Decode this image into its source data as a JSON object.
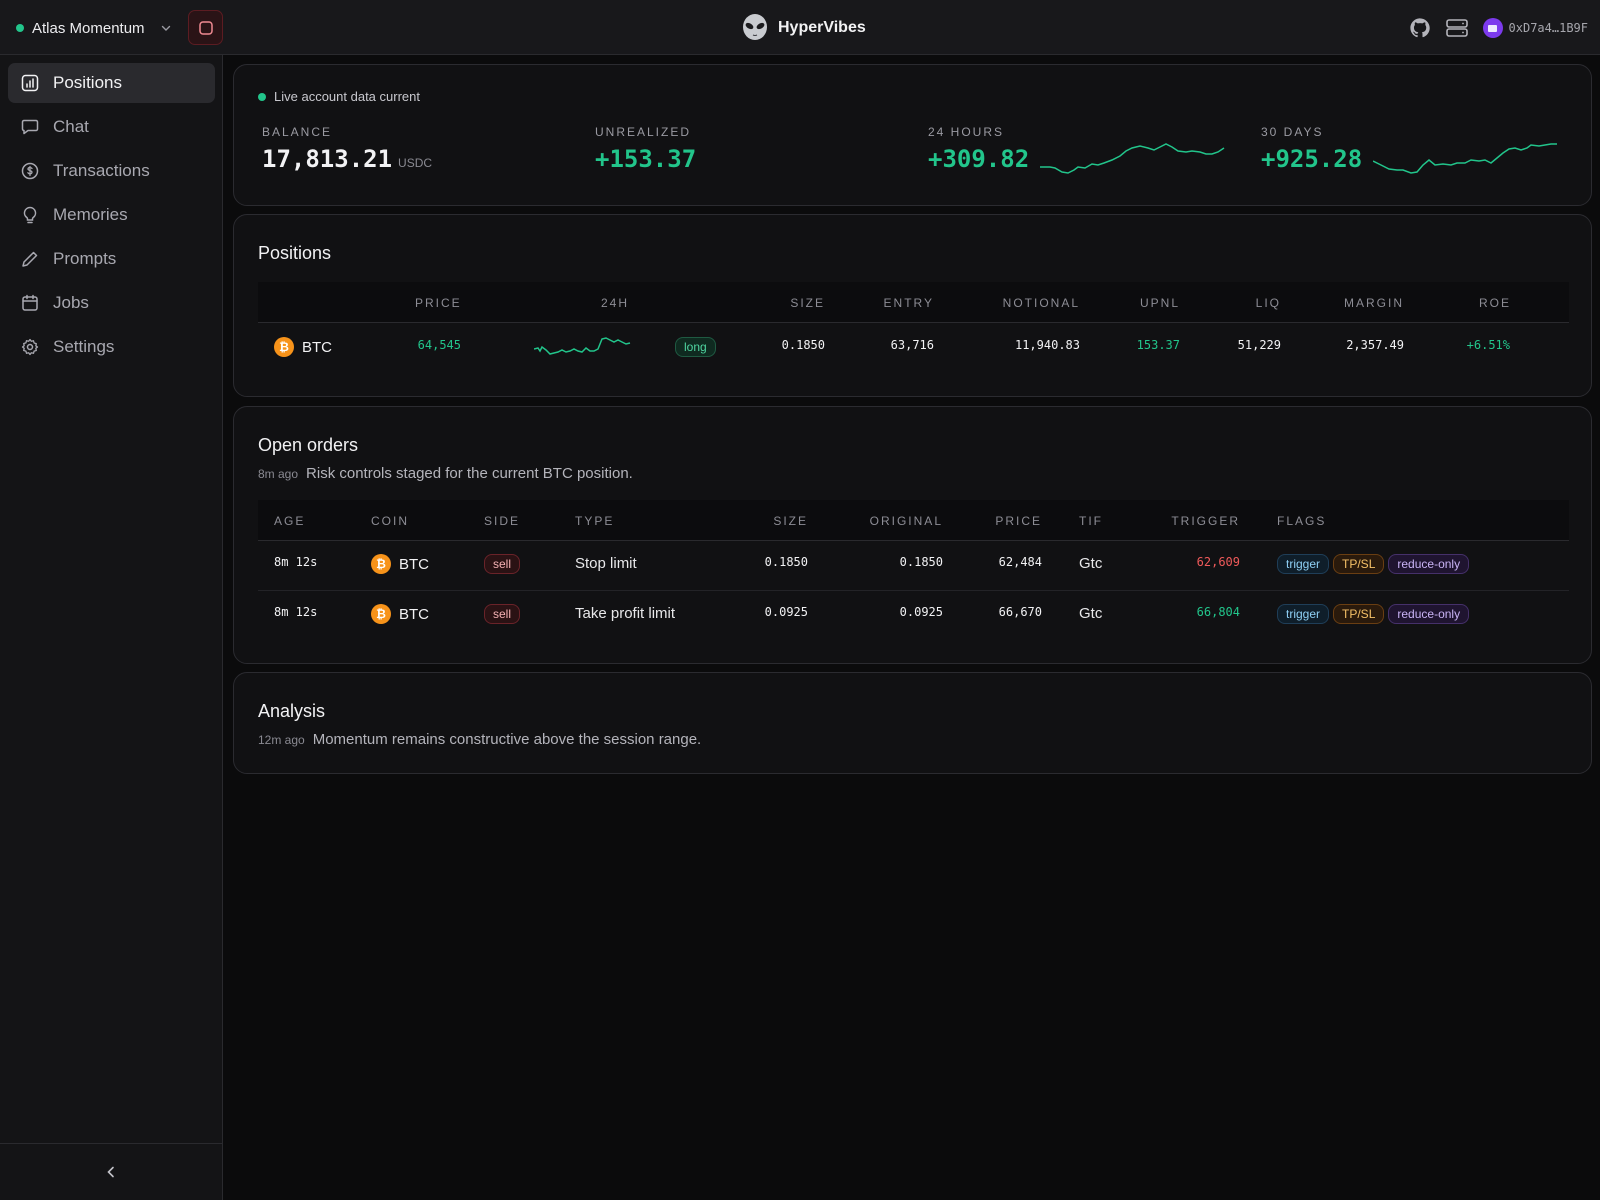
{
  "topbar": {
    "account_name": "Atlas Momentum",
    "brand": "HyperVibes",
    "wallet_address": "0xD7a4…1B9F"
  },
  "sidebar": {
    "items": [
      {
        "label": "Positions",
        "icon": "chart-bar-icon",
        "active": true
      },
      {
        "label": "Chat",
        "icon": "chat-bubble-icon"
      },
      {
        "label": "Transactions",
        "icon": "dollar-circle-icon"
      },
      {
        "label": "Memories",
        "icon": "lightbulb-icon"
      },
      {
        "label": "Prompts",
        "icon": "pencil-icon"
      },
      {
        "label": "Jobs",
        "icon": "calendar-icon"
      },
      {
        "label": "Settings",
        "icon": "gear-icon"
      }
    ]
  },
  "summary": {
    "live_text": "Live account data current",
    "balance_label": "BALANCE",
    "balance_value": "17,813.21",
    "balance_unit": "USDC",
    "unrealized_label": "UNREALIZED",
    "unrealized_value": "+153.37",
    "h24_label": "24 HOURS",
    "h24_value": "+309.82",
    "d30_label": "30 DAYS",
    "d30_value": "+925.28"
  },
  "positions": {
    "title": "Positions",
    "headers": {
      "price": "PRICE",
      "h24": "24H",
      "size": "SIZE",
      "entry": "ENTRY",
      "notional": "NOTIONAL",
      "upnl": "UPNL",
      "liq": "LIQ",
      "margin": "MARGIN",
      "roe": "ROE"
    },
    "rows": [
      {
        "coin": "BTC",
        "price": "64,545",
        "side": "long",
        "size": "0.1850",
        "entry": "63,716",
        "notional": "11,940.83",
        "upnl": "153.37",
        "liq": "51,229",
        "margin": "2,357.49",
        "roe": "+6.51%"
      }
    ]
  },
  "orders": {
    "title": "Open orders",
    "ago": "8m ago",
    "subtitle": "Risk controls staged for the current BTC position.",
    "headers": {
      "age": "AGE",
      "coin": "COIN",
      "side": "SIDE",
      "type": "TYPE",
      "size": "SIZE",
      "original": "ORIGINAL",
      "price": "PRICE",
      "tif": "TIF",
      "trigger": "TRIGGER",
      "flags": "FLAGS"
    },
    "rows": [
      {
        "age": "8m 12s",
        "coin": "BTC",
        "side": "sell",
        "type": "Stop limit",
        "size": "0.1850",
        "original": "0.1850",
        "price": "62,484",
        "tif": "Gtc",
        "trigger": "62,609",
        "trigger_color": "#ef5a5a",
        "flags": [
          "trigger",
          "TP/SL",
          "reduce-only"
        ]
      },
      {
        "age": "8m 12s",
        "coin": "BTC",
        "side": "sell",
        "type": "Take profit limit",
        "size": "0.0925",
        "original": "0.0925",
        "price": "66,670",
        "tif": "Gtc",
        "trigger": "66,804",
        "trigger_color": "#22c58b",
        "flags": [
          "trigger",
          "TP/SL",
          "reduce-only"
        ]
      }
    ]
  },
  "analysis": {
    "title": "Analysis",
    "ago": "12m ago",
    "text": "Momentum remains constructive above the session range."
  },
  "colors": {
    "accent_green": "#22c58b",
    "accent_red": "#ef5a5a",
    "btc_orange": "#f7931a"
  }
}
